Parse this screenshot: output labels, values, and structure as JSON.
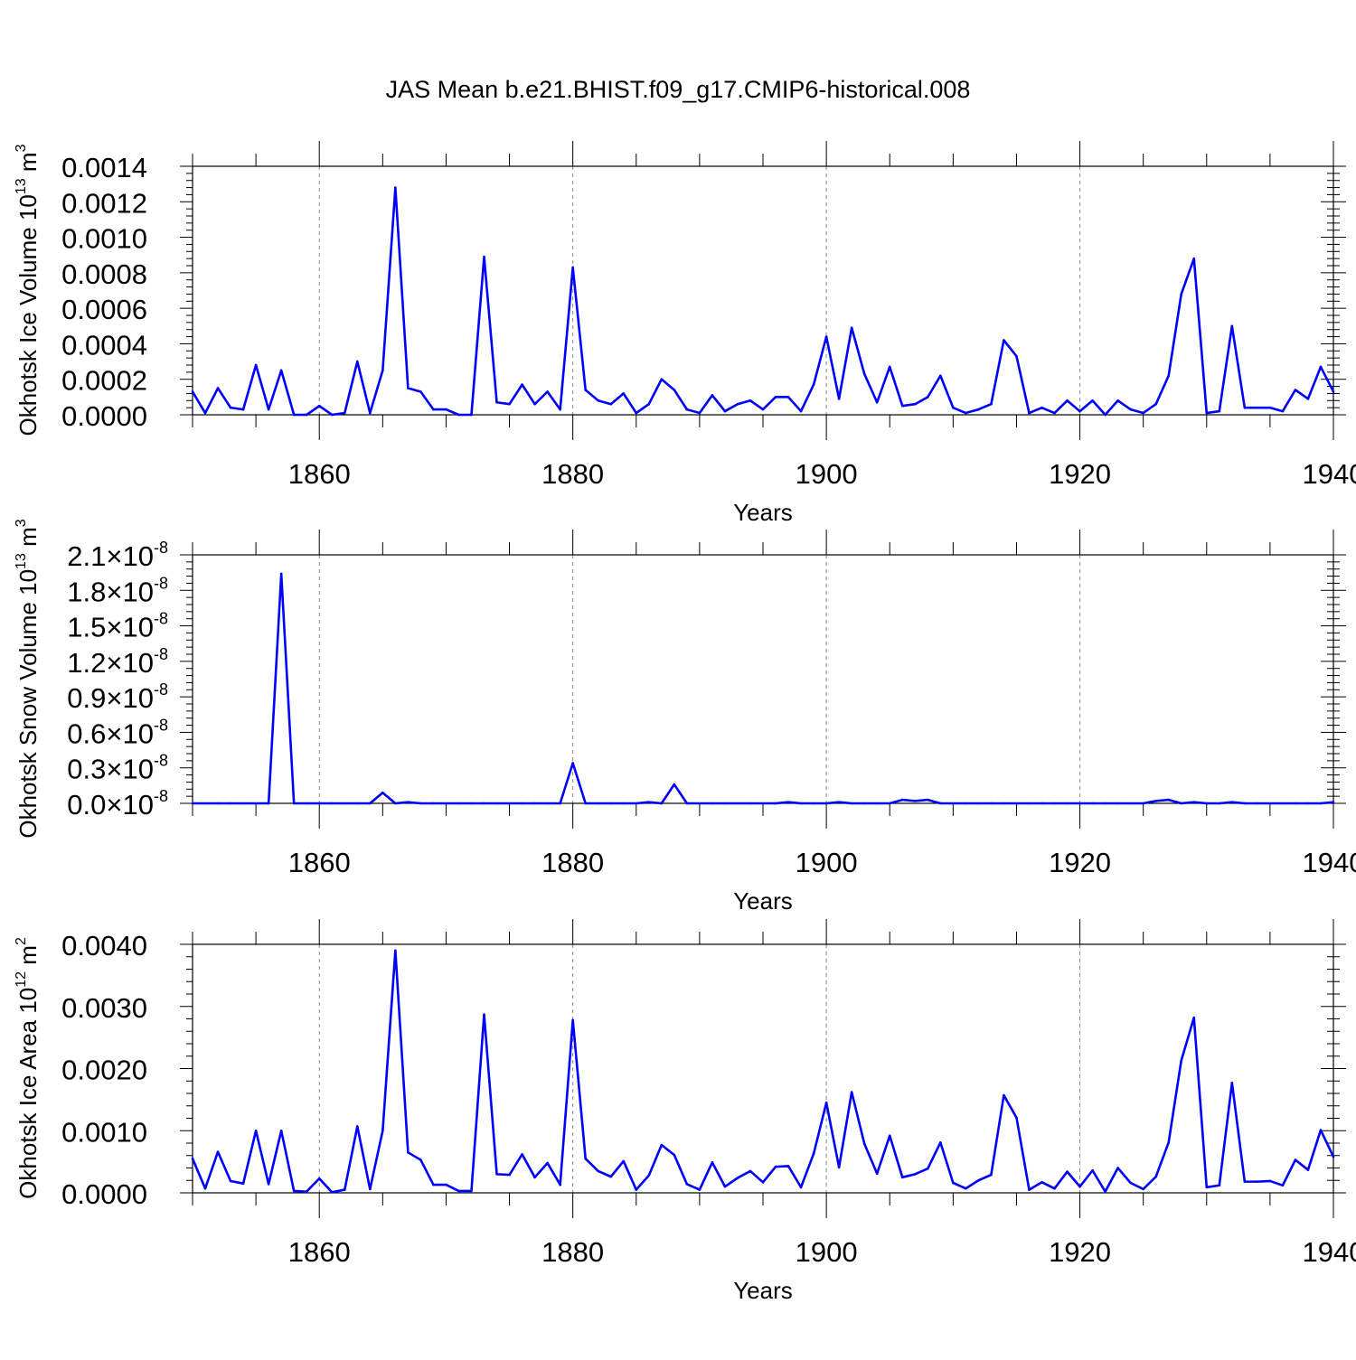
{
  "title": "JAS Mean b.e21.BHIST.f09_g17.CMIP6-historical.008",
  "colors": {
    "series": "#0000ff",
    "axis": "#000000",
    "grid": "#888888"
  },
  "chart_data": [
    {
      "type": "line",
      "ylabel": "Okhotsk Ice Volume 10",
      "ylabel_sup": "13",
      "ylabel_unit": "m",
      "ylabel_unit_sup": "3",
      "xlabel": "Years",
      "xlim": [
        1850,
        1940
      ],
      "ylim": [
        0,
        0.0014
      ],
      "xticks": [
        1860,
        1880,
        1900,
        1920,
        1940
      ],
      "xtick_labels": [
        "1860",
        "1880",
        "1900",
        "1920",
        "1940"
      ],
      "yticks": [
        0,
        0.0002,
        0.0004,
        0.0006,
        0.0008,
        0.001,
        0.0012,
        0.0014
      ],
      "ytick_labels": [
        "0.0000",
        "0.0002",
        "0.0004",
        "0.0006",
        "0.0008",
        "0.0010",
        "0.0012",
        "0.0014"
      ],
      "grid": "dashed vertical at x ticks",
      "x_start": 1850,
      "values": [
        0.00013,
        1e-05,
        0.00015,
        4e-05,
        3e-05,
        0.00028,
        3e-05,
        0.00025,
        0.0,
        0.0,
        5e-05,
        0.0,
        1e-05,
        0.0003,
        1e-05,
        0.00025,
        0.00128,
        0.00015,
        0.00013,
        3e-05,
        3e-05,
        0.0,
        0.0,
        0.00089,
        7e-05,
        6e-05,
        0.00017,
        6e-05,
        0.00013,
        3e-05,
        0.00083,
        0.00014,
        8e-05,
        6e-05,
        0.00012,
        1e-05,
        6e-05,
        0.0002,
        0.00014,
        3e-05,
        1e-05,
        0.00011,
        2e-05,
        6e-05,
        8e-05,
        3e-05,
        0.0001,
        0.0001,
        2e-05,
        0.00017,
        0.00044,
        9e-05,
        0.00049,
        0.00023,
        7e-05,
        0.00027,
        5e-05,
        6e-05,
        0.0001,
        0.00022,
        4e-05,
        1e-05,
        3e-05,
        6e-05,
        0.00042,
        0.00033,
        1e-05,
        4e-05,
        1e-05,
        8e-05,
        2e-05,
        8e-05,
        0.0,
        8e-05,
        3e-05,
        1e-05,
        6e-05,
        0.00022,
        0.00068,
        0.00088,
        1e-05,
        2e-05,
        0.0005,
        4e-05,
        4e-05,
        4e-05,
        2e-05,
        0.00014,
        9e-05,
        0.00027,
        0.00013
      ]
    },
    {
      "type": "line",
      "ylabel": "Okhotsk Snow Volume 10",
      "ylabel_sup": "13",
      "ylabel_unit": "m",
      "ylabel_unit_sup": "3",
      "xlabel": "Years",
      "xlim": [
        1850,
        1940
      ],
      "ylim": [
        0,
        2.1e-08
      ],
      "xticks": [
        1860,
        1880,
        1900,
        1920,
        1940
      ],
      "xtick_labels": [
        "1860",
        "1880",
        "1900",
        "1920",
        "1940"
      ],
      "yticks": [
        0,
        3e-09,
        6e-09,
        9e-09,
        1.2e-08,
        1.5e-08,
        1.8e-08,
        2.1e-08
      ],
      "ytick_labels": [
        "0.0",
        "0.3",
        "0.6",
        "0.9",
        "1.2",
        "1.5",
        "1.8",
        "2.1"
      ],
      "ytick_suffix": "×10",
      "ytick_exp": "-8",
      "grid": "dashed vertical at x ticks",
      "x_start": 1850,
      "values": [
        0,
        0,
        0,
        0,
        0,
        0,
        0,
        1.94e-08,
        0,
        0,
        0,
        0,
        0,
        0,
        0,
        9e-10,
        0,
        1e-10,
        0,
        0,
        0,
        0,
        0,
        0,
        0,
        0,
        0,
        0,
        0,
        0,
        3.4e-09,
        0,
        0,
        0,
        0,
        0,
        1e-10,
        0,
        1.6e-09,
        0,
        0,
        0,
        0,
        0,
        0,
        0,
        0,
        1e-10,
        0,
        0,
        0,
        1e-10,
        0,
        0,
        0,
        0,
        3e-10,
        2e-10,
        3e-10,
        0,
        0,
        0,
        0,
        0,
        0,
        0,
        0,
        0,
        0,
        0,
        0,
        0,
        0,
        0,
        0,
        0,
        2e-10,
        3e-10,
        0,
        1e-10,
        0,
        0,
        1e-10,
        0,
        0,
        0,
        0,
        0,
        0,
        0,
        1e-10
      ]
    },
    {
      "type": "line",
      "ylabel": "Okhotsk Ice Area 10",
      "ylabel_sup": "12",
      "ylabel_unit": "m",
      "ylabel_unit_sup": "2",
      "xlabel": "Years",
      "xlim": [
        1850,
        1940
      ],
      "ylim": [
        0,
        0.004
      ],
      "xticks": [
        1860,
        1880,
        1900,
        1920,
        1940
      ],
      "xtick_labels": [
        "1860",
        "1880",
        "1900",
        "1920",
        "1940"
      ],
      "yticks": [
        0,
        0.001,
        0.002,
        0.003,
        0.004
      ],
      "ytick_labels": [
        "0.0000",
        "0.0010",
        "0.0020",
        "0.0030",
        "0.0040"
      ],
      "grid": "dashed vertical at x ticks",
      "x_start": 1850,
      "values": [
        0.00055,
        7e-05,
        0.00066,
        0.00019,
        0.00015,
        0.001,
        0.00014,
        0.001,
        3e-05,
        2e-05,
        0.00023,
        1e-05,
        5e-05,
        0.00107,
        6e-05,
        0.001,
        0.0039,
        0.00065,
        0.00053,
        0.00013,
        0.00013,
        3e-05,
        3e-05,
        0.00287,
        0.0003,
        0.00029,
        0.00062,
        0.00025,
        0.00048,
        0.00013,
        0.00278,
        0.00055,
        0.00035,
        0.00026,
        0.00051,
        5e-05,
        0.00028,
        0.00077,
        0.00061,
        0.00014,
        5e-05,
        0.00049,
        0.0001,
        0.00024,
        0.00035,
        0.00017,
        0.00042,
        0.00043,
        9e-05,
        0.00063,
        0.00145,
        0.00041,
        0.00162,
        0.00079,
        0.00031,
        0.00092,
        0.00025,
        0.0003,
        0.00039,
        0.00081,
        0.00016,
        7e-05,
        0.0002,
        0.00029,
        0.00157,
        0.00121,
        5e-05,
        0.00017,
        7e-05,
        0.00034,
        0.0001,
        0.00036,
        2e-05,
        0.0004,
        0.00016,
        6e-05,
        0.00026,
        0.00081,
        0.00213,
        0.00282,
        9e-05,
        0.00012,
        0.00177,
        0.00018,
        0.00018,
        0.00019,
        0.00012,
        0.00053,
        0.00037,
        0.00101,
        0.00058
      ]
    }
  ]
}
